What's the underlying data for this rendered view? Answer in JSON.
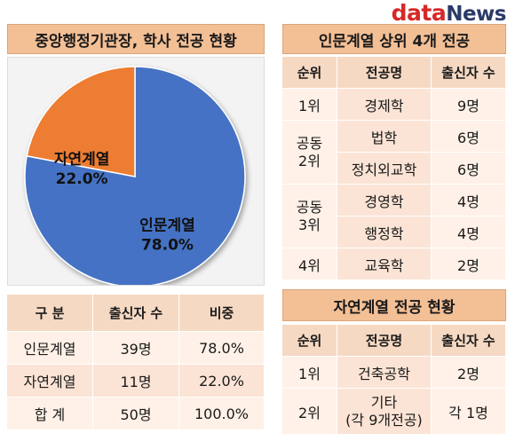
{
  "logo": {
    "part1": "data",
    "part2": "News"
  },
  "chart_data": {
    "type": "pie",
    "title": "중앙행정기관장, 학사 전공 현황",
    "slices": [
      {
        "label": "인문계열",
        "value": 78.0,
        "display": "78.0%",
        "color": "#4472c4"
      },
      {
        "label": "자연계열",
        "value": 22.0,
        "display": "22.0%",
        "color": "#ed7d31"
      }
    ]
  },
  "summary_table": {
    "headers": [
      "구 분",
      "출신자 수",
      "비중"
    ],
    "rows": [
      [
        "인문계열",
        "39명",
        "78.0%"
      ],
      [
        "자연계열",
        "11명",
        "22.0%"
      ],
      [
        "합 계",
        "50명",
        "100.0%"
      ]
    ]
  },
  "humanities_table": {
    "title": "인문계열 상위 4개 전공",
    "headers": [
      "순위",
      "전공명",
      "출신자 수"
    ],
    "groups": [
      {
        "rank": [
          "1위"
        ],
        "majors": [
          {
            "name": "경제학",
            "count": "9명"
          }
        ]
      },
      {
        "rank": [
          "공동",
          "2위"
        ],
        "majors": [
          {
            "name": "법학",
            "count": "6명"
          },
          {
            "name": "정치외교학",
            "count": "6명"
          }
        ]
      },
      {
        "rank": [
          "공동",
          "3위"
        ],
        "majors": [
          {
            "name": "경영학",
            "count": "4명"
          },
          {
            "name": "행정학",
            "count": "4명"
          }
        ]
      },
      {
        "rank": [
          "4위"
        ],
        "majors": [
          {
            "name": "교육학",
            "count": "2명"
          }
        ]
      }
    ]
  },
  "science_table": {
    "title": "자연계열 전공 현황",
    "headers": [
      "순위",
      "전공명",
      "출신자 수"
    ],
    "rows": [
      {
        "rank": "1위",
        "major": [
          "건축공학"
        ],
        "count": "2명"
      },
      {
        "rank": "2위",
        "major": [
          "기타",
          "(각 9개전공)"
        ],
        "count": "각 1명"
      }
    ]
  }
}
